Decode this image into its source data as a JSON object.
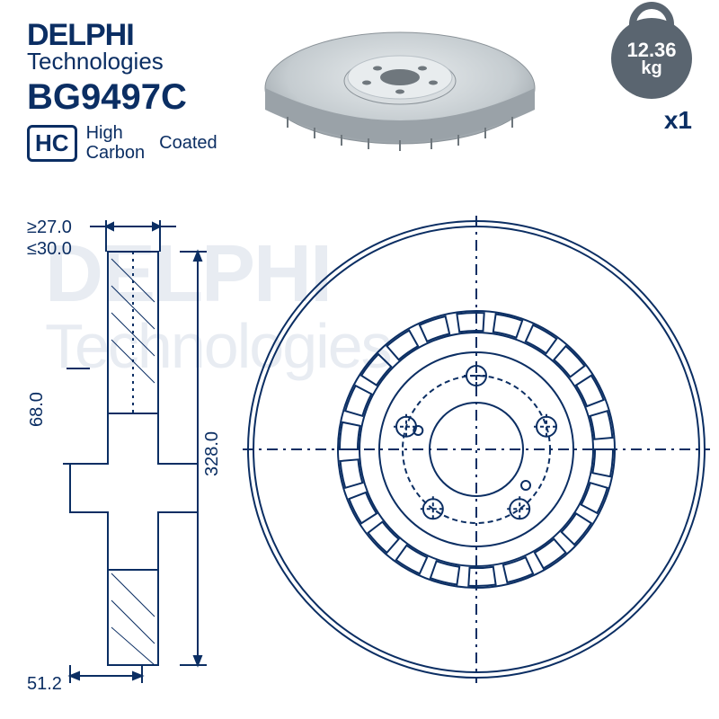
{
  "brand": {
    "main": "DELPHI",
    "sub": "Technologies"
  },
  "part_number": "BG9497C",
  "hc_badge": {
    "code": "HC",
    "line1": "High",
    "line2": "Carbon",
    "coated": "Coated"
  },
  "weight": {
    "value": "12.36",
    "unit": "kg"
  },
  "quantity": "x1",
  "dimensions": {
    "min_thickness": "27.0",
    "max_thickness": "30.0",
    "hub_height": "68.0",
    "hub_diameter": "51.2",
    "outer_diameter": "328.0",
    "ge_sym": "≥",
    "le_sym": "≤"
  },
  "colors": {
    "brand_blue": "#0b2e63",
    "badge_gray": "#5a6570",
    "disc_light": "#d8dde0",
    "disc_mid": "#b8c0c6",
    "disc_dark": "#8a9298",
    "line_blue": "#0b2e63",
    "watermark": "#4a6a9a"
  },
  "drawing": {
    "outer_d": 328.0,
    "inner_ring_d": 200.0,
    "hub_bore_d": 70.0,
    "bolt_circle_d": 130.0,
    "num_bolts": 5,
    "num_small_holes": 2,
    "side_scale": 1.55,
    "front_scale": 1.55,
    "stroke_width": 2
  }
}
